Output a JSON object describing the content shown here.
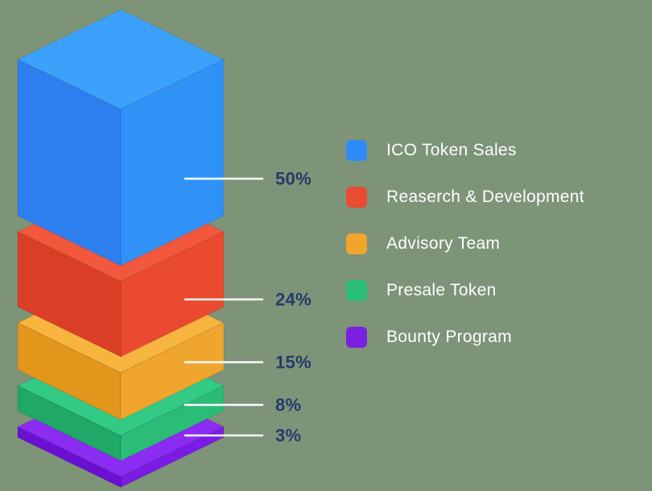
{
  "background": "#7d9478",
  "chart_data": {
    "type": "bar",
    "variant": "isometric-stacked-column",
    "title": "",
    "unit": "%",
    "legend_position": "right",
    "callout_line_color": "#ffffff",
    "callout_text_color": "#263a6b",
    "categories": [
      "ICO Token Sales",
      "Reaserch & Development",
      "Advisory Team",
      "Presale Token",
      "Bounty Program"
    ],
    "values": [
      50,
      24,
      15,
      8,
      3
    ],
    "segments": [
      {
        "label": "ICO Token Sales",
        "value": 50,
        "pct_label": "50%",
        "color": "#2f8af9",
        "top": "#3ba1fa",
        "left": "#2d7ff0",
        "right": "#3092f7"
      },
      {
        "label": "Reaserch & Development",
        "value": 24,
        "pct_label": "24%",
        "color": "#e94c33",
        "top": "#f1583d",
        "left": "#db3e26",
        "right": "#ea4a30"
      },
      {
        "label": "Advisory Team",
        "value": 15,
        "pct_label": "15%",
        "color": "#f0a42c",
        "top": "#f7b43f",
        "left": "#e2961c",
        "right": "#f0a62e"
      },
      {
        "label": "Presale Token",
        "value": 8,
        "pct_label": "8%",
        "color": "#28bd78",
        "top": "#33ca86",
        "left": "#1fa867",
        "right": "#2bbc77"
      },
      {
        "label": "Bounty Program",
        "value": 3,
        "pct_label": "3%",
        "color": "#7b1fe0",
        "top": "#8a2cf2",
        "left": "#6a10d2",
        "right": "#7a1ce4"
      }
    ]
  }
}
